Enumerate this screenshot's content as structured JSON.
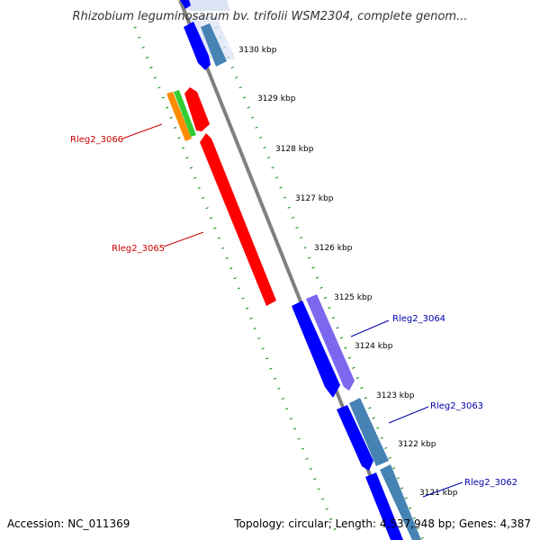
{
  "title": "Rhizobium leguminosarum bv. trifolii WSM2304, complete genom...",
  "footer": {
    "accession": "Accession: NC_011369",
    "summary": "Topology: circular; Length: 4,537,948 bp; Genes: 4,387"
  },
  "ticks": [
    "3130 kbp",
    "3129 kbp",
    "3128 kbp",
    "3127 kbp",
    "3126 kbp",
    "3125 kbp",
    "3124 kbp",
    "3123 kbp",
    "3122 kbp",
    "3121 kbp"
  ],
  "gene_labels": [
    {
      "text": "Rleg2_3066",
      "color": "#cc0000"
    },
    {
      "text": "Rleg2_3065",
      "color": "#cc0000"
    },
    {
      "text": "Rleg2_3064",
      "color": "#0000aa"
    },
    {
      "text": "Rleg2_3063",
      "color": "#0000aa"
    },
    {
      "text": "Rleg2_3062",
      "color": "#0000aa"
    }
  ],
  "colors": {
    "backbone": "#808080",
    "reverse_gene": "#ff0000",
    "forward_gene": "#0000ff",
    "forward_rna": "#4682b4",
    "purple_gene": "#7b68ee",
    "orange_gene": "#ff8c00",
    "green_gene": "#32cd32",
    "dotted_ring": "#008000",
    "highlight": "#dde3f5"
  }
}
